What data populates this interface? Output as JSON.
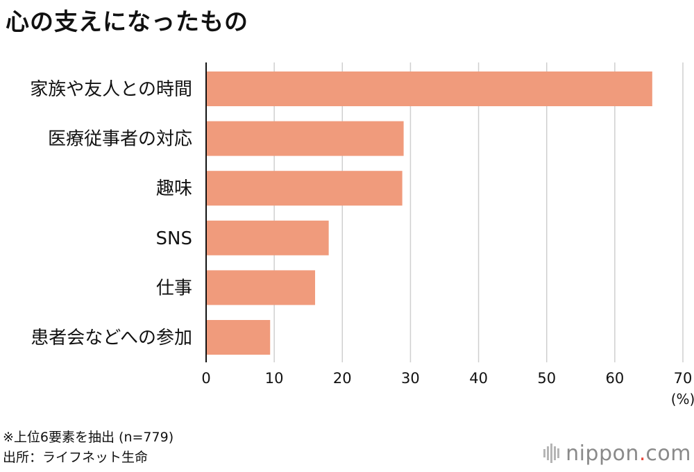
{
  "title": "心の支えになったもの",
  "chart_data": {
    "type": "bar",
    "orientation": "horizontal",
    "categories": [
      "家族や友人との時間",
      "医療従事者の対応",
      "趣味",
      "SNS",
      "仕事",
      "患者会などへの参加"
    ],
    "values": [
      65.5,
      29,
      28.8,
      18,
      16,
      9.4
    ],
    "xlim": [
      0,
      70
    ],
    "xticks": [
      "0",
      "10",
      "20",
      "30",
      "40",
      "50",
      "60",
      "70"
    ],
    "unit_label": "(%)",
    "grid": true,
    "bar_color": "#f09b7c"
  },
  "notes": {
    "line1": "※上位6要素を抽出 (n=779)",
    "line2": "出所：ライフネット生命"
  },
  "brand": {
    "name": "nippon",
    "dot": ".",
    "tld": "com",
    "dot_color": "#e8473b"
  }
}
